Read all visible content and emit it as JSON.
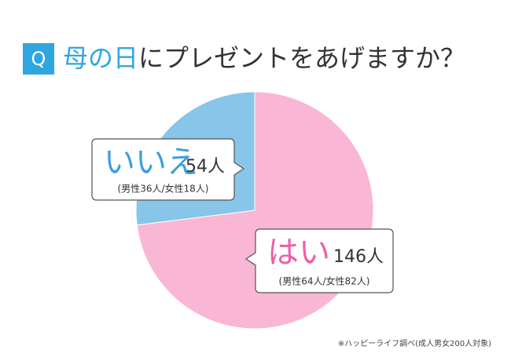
{
  "chart_data": {
    "type": "pie",
    "title_badge": "Q",
    "title_parts": [
      "母の日",
      "にプレゼントをあげますか？"
    ],
    "categories": [
      "はい",
      "いいえ"
    ],
    "values": [
      146,
      54
    ],
    "value_labels": [
      "146人",
      "54人"
    ],
    "breakdowns": [
      "(男性64人/女性82人)",
      "(男性36人/女性18人)"
    ],
    "colors": [
      "#f9b6d5",
      "#87c6e8"
    ],
    "label_colors": [
      "#ee5fa8",
      "#3f9fdc"
    ],
    "source": "※ハッピーライフ調べ(成人男女200人対象)"
  }
}
